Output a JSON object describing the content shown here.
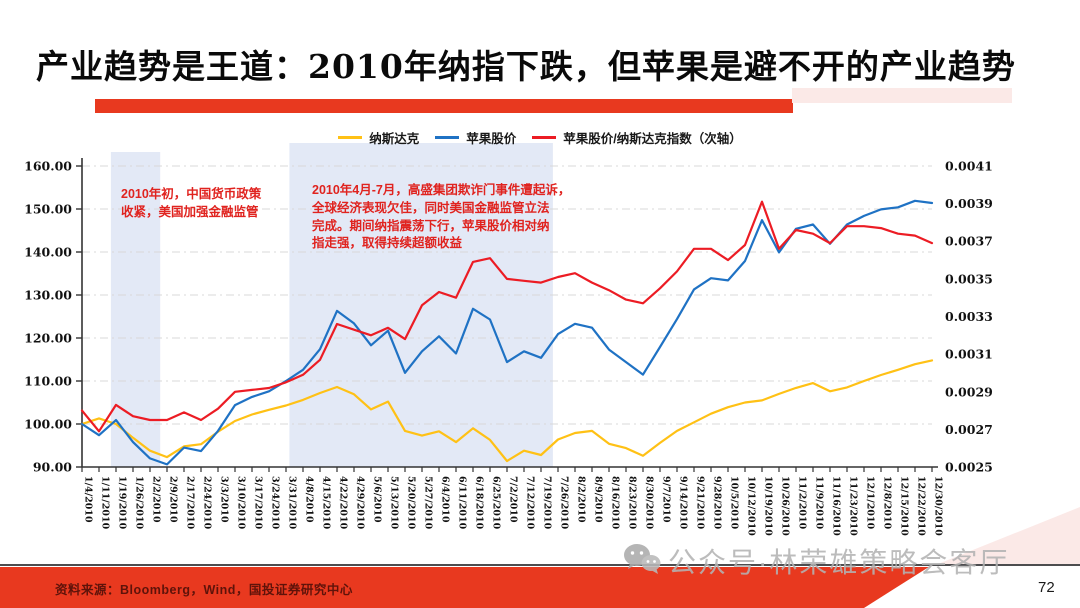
{
  "slide": {
    "title": "产业趋势是王道：2010年纳指下跌，但苹果是避不开的产业趋势",
    "accent_red": "#e8391f",
    "accent_pink": "#fbe9e7",
    "page_number": "72"
  },
  "legend": {
    "items": [
      {
        "label": "纳斯达克",
        "color": "#ffc115"
      },
      {
        "label": "苹果股价",
        "color": "#1f72c4"
      },
      {
        "label": "苹果股价/纳斯达克指数（次轴）",
        "color": "#ec1c24"
      }
    ]
  },
  "annotations": [
    {
      "text": "2010年初，中国货币政策\n收紧，美国加强金融监管"
    },
    {
      "text": "2010年4月-7月，高盛集团欺诈门事件遭起诉，\n全球经济表现欠佳，同时美国金融监管立法\n完成。期间纳指震荡下行，苹果股价相对纳\n指走强，取得持续超额收益"
    }
  ],
  "footer": {
    "source": "资料来源：Bloomberg，Wind，国投证券研究中心",
    "watermark": "公众号·林荣雄策略会客厅"
  },
  "chart_data": {
    "type": "line",
    "title": "",
    "grid": "horizontal dash-dot",
    "legend_position": "top",
    "left_axis": {
      "min": 90,
      "max": 160,
      "step": 10,
      "tick_format": "0.00"
    },
    "right_axis": {
      "min": 0.0025,
      "max": 0.0041,
      "step": 0.0002,
      "tick_format": "0.0000"
    },
    "x": [
      "1/4/2010",
      "1/11/2010",
      "1/19/2010",
      "1/26/2010",
      "2/2/2010",
      "2/9/2010",
      "2/17/2010",
      "2/24/2010",
      "3/3/2010",
      "3/10/2010",
      "3/17/2010",
      "3/24/2010",
      "3/31/2010",
      "4/8/2010",
      "4/15/2010",
      "4/22/2010",
      "4/29/2010",
      "5/6/2010",
      "5/13/2010",
      "5/20/2010",
      "5/27/2010",
      "6/4/2010",
      "6/11/2010",
      "6/18/2010",
      "6/25/2010",
      "7/2/2010",
      "7/12/2010",
      "7/19/2010",
      "7/26/2010",
      "8/2/2010",
      "8/9/2010",
      "8/16/2010",
      "8/23/2010",
      "8/30/2010",
      "9/7/2010",
      "9/14/2010",
      "9/21/2010",
      "9/28/2010",
      "10/5/2010",
      "10/12/2010",
      "10/19/2010",
      "10/26/2010",
      "11/2/2010",
      "11/9/2010",
      "11/16/2010",
      "11/23/2010",
      "12/1/2010",
      "12/8/2010",
      "12/15/2010",
      "12/22/2010",
      "12/30/2010"
    ],
    "series": [
      {
        "name": "纳斯达克",
        "axis": "left",
        "color": "#ffc115",
        "values": [
          100,
          101.3,
          100,
          96.8,
          93.8,
          92.3,
          94.8,
          95.3,
          98.2,
          100.7,
          102.2,
          103.3,
          104.3,
          105.6,
          107.2,
          108.6,
          106.9,
          103.4,
          105.2,
          98.4,
          97.3,
          98.3,
          95.8,
          99,
          96.3,
          91.4,
          93.8,
          92.8,
          96.4,
          97.9,
          98.4,
          95.4,
          94.4,
          92.6,
          95.6,
          98.4,
          100.4,
          102.4,
          103.9,
          105,
          105.5,
          107,
          108.4,
          109.5,
          107.6,
          108.5,
          110,
          111.4,
          112.6,
          113.9,
          114.8
        ]
      },
      {
        "name": "苹果股价",
        "axis": "left",
        "color": "#1f72c4",
        "values": [
          100,
          97.4,
          100.9,
          95.8,
          92,
          90.6,
          94.5,
          93.7,
          98.4,
          104.4,
          106.3,
          107.6,
          110,
          112.6,
          117.4,
          126.3,
          123.4,
          118.3,
          121.7,
          111.9,
          116.9,
          120.4,
          116.4,
          126.8,
          124.3,
          114.4,
          116.9,
          115.4,
          120.9,
          123.3,
          122.4,
          117.3,
          114.4,
          111.5,
          117.9,
          124.4,
          131.3,
          133.9,
          133.4,
          137.9,
          147.4,
          139.9,
          145.4,
          146.4,
          141.9,
          146.4,
          148.4,
          149.9,
          150.4,
          151.9,
          151.4
        ]
      },
      {
        "name": "苹果股价/纳斯达克指数（次轴）",
        "axis": "right",
        "color": "#ec1c24",
        "values": [
          0.0028,
          0.00269,
          0.00283,
          0.00277,
          0.00275,
          0.00275,
          0.00279,
          0.00275,
          0.00281,
          0.0029,
          0.00291,
          0.00292,
          0.00295,
          0.00299,
          0.00307,
          0.00326,
          0.00323,
          0.0032,
          0.00324,
          0.00318,
          0.00336,
          0.00343,
          0.0034,
          0.00359,
          0.00361,
          0.0035,
          0.00349,
          0.00348,
          0.00351,
          0.00353,
          0.00348,
          0.00344,
          0.00339,
          0.00337,
          0.00345,
          0.00354,
          0.00366,
          0.00366,
          0.0036,
          0.00368,
          0.00391,
          0.00366,
          0.00376,
          0.00374,
          0.00369,
          0.00378,
          0.00378,
          0.00377,
          0.00374,
          0.00373,
          0.00369
        ]
      }
    ],
    "highlight_bands": [
      {
        "from": "1/15/2010",
        "to": "2/3/2010",
        "from_index": 1.7,
        "to_index": 4.6,
        "color": "#e3e9f6"
      },
      {
        "from": "3/31/2010",
        "to": "7/26/2010",
        "from_index": 12.2,
        "to_index": 27.7,
        "color": "#e3e9f6"
      }
    ]
  }
}
